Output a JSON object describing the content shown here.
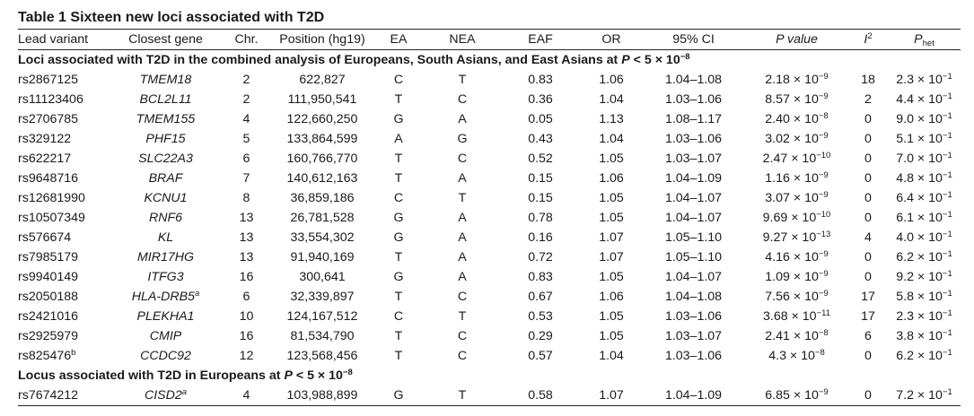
{
  "table": {
    "title": "Table 1  Sixteen new loci associated with T2D",
    "headers": {
      "lead": "Lead variant",
      "gene": "Closest gene",
      "chr": "Chr.",
      "pos": "Position (hg19)",
      "ea": "EA",
      "nea": "NEA",
      "eaf": "EAF",
      "or": "OR",
      "ci": "95% CI",
      "p": "P value",
      "i2": "I",
      "i2_sup": "2",
      "phet": "P",
      "phet_sub": "het"
    },
    "sections": [
      {
        "label": "Loci associated with T2D in the combined analysis of Europeans, South Asians, and East Asians at P < 5 × 10",
        "label_exp": "−8",
        "rows": [
          {
            "lead": "rs2867125",
            "lead_sup": "",
            "gene": "TMEM18",
            "gene_sup": "",
            "chr": "2",
            "pos": "622,827",
            "ea": "C",
            "nea": "T",
            "eaf": "0.83",
            "or": "1.06",
            "ci": "1.04–1.08",
            "p_mant": "2.18 × 10",
            "p_exp": "−9",
            "i2": "18",
            "phet_mant": "2.3 × 10",
            "phet_exp": "−1"
          },
          {
            "lead": "rs11123406",
            "lead_sup": "",
            "gene": "BCL2L11",
            "gene_sup": "",
            "chr": "2",
            "pos": "111,950,541",
            "ea": "T",
            "nea": "C",
            "eaf": "0.36",
            "or": "1.04",
            "ci": "1.03–1.06",
            "p_mant": "8.57 × 10",
            "p_exp": "−9",
            "i2": "2",
            "phet_mant": "4.4 × 10",
            "phet_exp": "−1"
          },
          {
            "lead": "rs2706785",
            "lead_sup": "",
            "gene": "TMEM155",
            "gene_sup": "",
            "chr": "4",
            "pos": "122,660,250",
            "ea": "G",
            "nea": "A",
            "eaf": "0.05",
            "or": "1.13",
            "ci": "1.08–1.17",
            "p_mant": "2.40 × 10",
            "p_exp": "−8",
            "i2": "0",
            "phet_mant": "9.0 × 10",
            "phet_exp": "−1"
          },
          {
            "lead": "rs329122",
            "lead_sup": "",
            "gene": "PHF15",
            "gene_sup": "",
            "chr": "5",
            "pos": "133,864,599",
            "ea": "A",
            "nea": "G",
            "eaf": "0.43",
            "or": "1.04",
            "ci": "1.03–1.06",
            "p_mant": "3.02 × 10",
            "p_exp": "−9",
            "i2": "0",
            "phet_mant": "5.1 × 10",
            "phet_exp": "−1"
          },
          {
            "lead": "rs622217",
            "lead_sup": "",
            "gene": "SLC22A3",
            "gene_sup": "",
            "chr": "6",
            "pos": "160,766,770",
            "ea": "T",
            "nea": "C",
            "eaf": "0.52",
            "or": "1.05",
            "ci": "1.03–1.07",
            "p_mant": "2.47 × 10",
            "p_exp": "−10",
            "i2": "0",
            "phet_mant": "7.0 × 10",
            "phet_exp": "−1"
          },
          {
            "lead": "rs9648716",
            "lead_sup": "",
            "gene": "BRAF",
            "gene_sup": "",
            "chr": "7",
            "pos": "140,612,163",
            "ea": "T",
            "nea": "A",
            "eaf": "0.15",
            "or": "1.06",
            "ci": "1.04–1.09",
            "p_mant": "1.16 × 10",
            "p_exp": "−9",
            "i2": "0",
            "phet_mant": "4.8 × 10",
            "phet_exp": "−1"
          },
          {
            "lead": "rs12681990",
            "lead_sup": "",
            "gene": "KCNU1",
            "gene_sup": "",
            "chr": "8",
            "pos": "36,859,186",
            "ea": "C",
            "nea": "T",
            "eaf": "0.15",
            "or": "1.05",
            "ci": "1.04–1.07",
            "p_mant": "3.07 × 10",
            "p_exp": "−9",
            "i2": "0",
            "phet_mant": "6.4 × 10",
            "phet_exp": "−1"
          },
          {
            "lead": "rs10507349",
            "lead_sup": "",
            "gene": "RNF6",
            "gene_sup": "",
            "chr": "13",
            "pos": "26,781,528",
            "ea": "G",
            "nea": "A",
            "eaf": "0.78",
            "or": "1.05",
            "ci": "1.04–1.07",
            "p_mant": "9.69 × 10",
            "p_exp": "−10",
            "i2": "0",
            "phet_mant": "6.1 × 10",
            "phet_exp": "−1"
          },
          {
            "lead": "rs576674",
            "lead_sup": "",
            "gene": "KL",
            "gene_sup": "",
            "chr": "13",
            "pos": "33,554,302",
            "ea": "G",
            "nea": "A",
            "eaf": "0.16",
            "or": "1.07",
            "ci": "1.05–1.10",
            "p_mant": "9.27 × 10",
            "p_exp": "−13",
            "i2": "4",
            "phet_mant": "4.0 × 10",
            "phet_exp": "−1"
          },
          {
            "lead": "rs7985179",
            "lead_sup": "",
            "gene": "MIR17HG",
            "gene_sup": "",
            "chr": "13",
            "pos": "91,940,169",
            "ea": "T",
            "nea": "A",
            "eaf": "0.72",
            "or": "1.07",
            "ci": "1.05–1.10",
            "p_mant": "4.16 × 10",
            "p_exp": "−9",
            "i2": "0",
            "phet_mant": "6.2 × 10",
            "phet_exp": "−1"
          },
          {
            "lead": "rs9940149",
            "lead_sup": "",
            "gene": "ITFG3",
            "gene_sup": "",
            "chr": "16",
            "pos": "300,641",
            "ea": "G",
            "nea": "A",
            "eaf": "0.83",
            "or": "1.05",
            "ci": "1.04–1.07",
            "p_mant": "1.09 × 10",
            "p_exp": "−9",
            "i2": "0",
            "phet_mant": "9.2 × 10",
            "phet_exp": "−1"
          },
          {
            "lead": "rs2050188",
            "lead_sup": "",
            "gene": "HLA-DRB5",
            "gene_sup": "a",
            "chr": "6",
            "pos": "32,339,897",
            "ea": "T",
            "nea": "C",
            "eaf": "0.67",
            "or": "1.06",
            "ci": "1.04–1.08",
            "p_mant": "7.56 × 10",
            "p_exp": "−9",
            "i2": "17",
            "phet_mant": "5.8 × 10",
            "phet_exp": "−1"
          },
          {
            "lead": "rs2421016",
            "lead_sup": "",
            "gene": "PLEKHA1",
            "gene_sup": "",
            "chr": "10",
            "pos": "124,167,512",
            "ea": "C",
            "nea": "T",
            "eaf": "0.53",
            "or": "1.05",
            "ci": "1.03–1.06",
            "p_mant": "3.68 × 10",
            "p_exp": "−11",
            "i2": "17",
            "phet_mant": "2.3 × 10",
            "phet_exp": "−1"
          },
          {
            "lead": "rs2925979",
            "lead_sup": "",
            "gene": "CMIP",
            "gene_sup": "",
            "chr": "16",
            "pos": "81,534,790",
            "ea": "T",
            "nea": "C",
            "eaf": "0.29",
            "or": "1.05",
            "ci": "1.03–1.07",
            "p_mant": "2.41 × 10",
            "p_exp": "−8",
            "i2": "6",
            "phet_mant": "3.8 × 10",
            "phet_exp": "−1"
          },
          {
            "lead": "rs825476",
            "lead_sup": "b",
            "gene": "CCDC92",
            "gene_sup": "",
            "chr": "12",
            "pos": "123,568,456",
            "ea": "T",
            "nea": "C",
            "eaf": "0.57",
            "or": "1.04",
            "ci": "1.03–1.06",
            "p_mant": "4.3 × 10",
            "p_exp": "−8",
            "i2": "0",
            "phet_mant": "6.2 × 10",
            "phet_exp": "−1"
          }
        ]
      },
      {
        "label": "Locus associated with T2D in Europeans at P < 5 × 10",
        "label_exp": "−8",
        "rows": [
          {
            "lead": "rs7674212",
            "lead_sup": "",
            "gene": "CISD2",
            "gene_sup": "a",
            "chr": "4",
            "pos": "103,988,899",
            "ea": "G",
            "nea": "T",
            "eaf": "0.58",
            "or": "1.07",
            "ci": "1.04–1.09",
            "p_mant": "6.85 × 10",
            "p_exp": "−9",
            "i2": "0",
            "phet_mant": "7.2 × 10",
            "phet_exp": "−1"
          }
        ]
      }
    ]
  }
}
